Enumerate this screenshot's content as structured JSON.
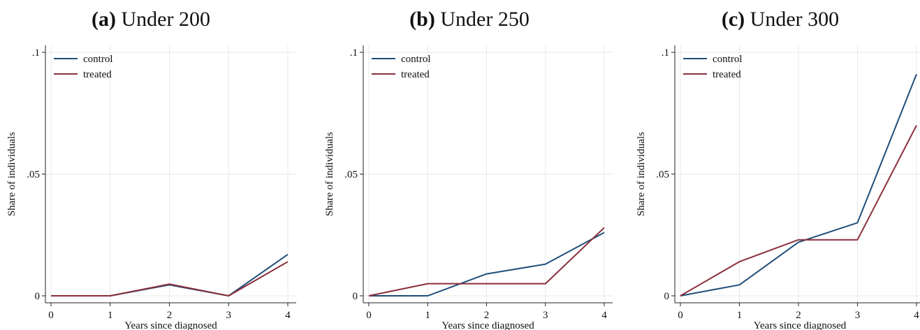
{
  "chart_data": [
    {
      "type": "line",
      "panel_tag": "(a)",
      "title": "Under 200",
      "xlabel": "Years since diagnosed",
      "ylabel": "Share of individuals",
      "x": [
        0,
        1,
        2,
        3,
        4
      ],
      "x_ticks": [
        "0",
        "1",
        "2",
        "3",
        "4"
      ],
      "y_ticks": [
        {
          "value": 0,
          "label": "0"
        },
        {
          "value": 0.05,
          "label": ".05"
        },
        {
          "value": 0.1,
          "label": ".1"
        }
      ],
      "ylim": [
        0,
        0.1
      ],
      "grid": true,
      "legend_position": "top-left",
      "series": [
        {
          "name": "control",
          "color": "#1f4e79",
          "values": [
            0,
            0,
            0.0045,
            0,
            0.017
          ]
        },
        {
          "name": "treated",
          "color": "#8b2f3b",
          "values": [
            0,
            0,
            0.0048,
            0,
            0.014
          ]
        }
      ]
    },
    {
      "type": "line",
      "panel_tag": "(b)",
      "title": "Under 250",
      "xlabel": "Years since diagnosed",
      "ylabel": "Share of individuals",
      "x": [
        0,
        1,
        2,
        3,
        4
      ],
      "x_ticks": [
        "0",
        "1",
        "2",
        "3",
        "4"
      ],
      "y_ticks": [
        {
          "value": 0,
          "label": "0"
        },
        {
          "value": 0.05,
          "label": ".05"
        },
        {
          "value": 0.1,
          "label": ".1"
        }
      ],
      "ylim": [
        0,
        0.1
      ],
      "grid": true,
      "legend_position": "top-left",
      "series": [
        {
          "name": "control",
          "color": "#1f4e79",
          "values": [
            0,
            0,
            0.009,
            0.013,
            0.026
          ]
        },
        {
          "name": "treated",
          "color": "#8b2f3b",
          "values": [
            0,
            0.005,
            0.005,
            0.005,
            0.028
          ]
        }
      ]
    },
    {
      "type": "line",
      "panel_tag": "(c)",
      "title": "Under 300",
      "xlabel": "Years since diagnosed",
      "ylabel": "Share of individuals",
      "x": [
        0,
        1,
        2,
        3,
        4
      ],
      "x_ticks": [
        "0",
        "1",
        "2",
        "3",
        "4"
      ],
      "y_ticks": [
        {
          "value": 0,
          "label": "0"
        },
        {
          "value": 0.05,
          "label": ".05"
        },
        {
          "value": 0.1,
          "label": ".1"
        }
      ],
      "ylim": [
        0,
        0.1
      ],
      "grid": true,
      "legend_position": "top-left",
      "series": [
        {
          "name": "control",
          "color": "#1f4e79",
          "values": [
            0,
            0.0045,
            0.022,
            0.03,
            0.091
          ]
        },
        {
          "name": "treated",
          "color": "#8b2f3b",
          "values": [
            0,
            0.014,
            0.023,
            0.023,
            0.07
          ]
        }
      ]
    }
  ]
}
